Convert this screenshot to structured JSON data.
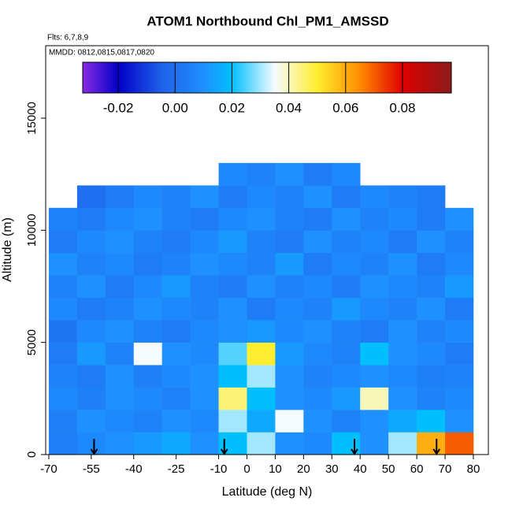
{
  "chart_data": {
    "type": "heatmap",
    "title": "ATOM1 Northbound Chl_PM1_AMSSD",
    "subtitle": "Flts: 6,7,8,9",
    "annotation": "MMDD: 0812,0815,0817,0820",
    "x_label": "Latitude (deg N)",
    "y_label": "Altitude (m)",
    "xlim": [
      -71.1,
      85.3
    ],
    "ylim": [
      0,
      18230
    ],
    "xticks": [
      -70,
      -55,
      -40,
      -25,
      -10,
      0,
      10,
      20,
      30,
      40,
      50,
      60,
      70,
      80
    ],
    "yticks": [
      0,
      5000,
      10000,
      15000
    ],
    "x_bins": [
      -70,
      -60,
      -50,
      -40,
      -30,
      -20,
      -10,
      0,
      10,
      20,
      30,
      40,
      50,
      60,
      70,
      80
    ],
    "y_bins": [
      0,
      1000,
      2000,
      3000,
      4000,
      5000,
      6000,
      7000,
      8000,
      9000,
      10000,
      11000,
      12000,
      13000
    ],
    "values": [
      [
        0.005,
        0.008,
        0.01,
        0.012,
        0.015,
        0.01,
        0.02,
        0.03,
        0.01,
        0.008,
        0.02,
        0.01,
        0.03,
        0.06,
        0.07
      ],
      [
        0.005,
        0.01,
        0.008,
        0.006,
        0.01,
        0.008,
        0.03,
        0.015,
        0.035,
        0.01,
        0.006,
        0.01,
        0.015,
        0.02,
        0.01
      ],
      [
        0.008,
        0.005,
        0.01,
        0.008,
        0.006,
        0.01,
        0.045,
        0.02,
        0.01,
        0.008,
        0.012,
        0.04,
        0.01,
        0.006,
        0.008
      ],
      [
        0.006,
        0.004,
        0.01,
        0.005,
        0.008,
        0.01,
        0.02,
        0.03,
        0.01,
        0.006,
        0.008,
        0.01,
        0.008,
        0.005,
        0.006
      ],
      [
        0.004,
        0.012,
        0.006,
        0.035,
        0.01,
        0.008,
        0.025,
        0.05,
        0.012,
        0.008,
        0.006,
        0.02,
        0.01,
        0.008,
        0.004
      ],
      [
        0.002,
        0.008,
        0.01,
        0.006,
        0.004,
        0.008,
        0.01,
        0.012,
        0.008,
        0.01,
        0.006,
        0.004,
        0.01,
        0.006,
        0.008
      ],
      [
        0.008,
        0.004,
        0.006,
        0.01,
        0.008,
        0.006,
        0.01,
        0.004,
        0.008,
        0.006,
        0.012,
        0.008,
        0.006,
        0.01,
        0.004
      ],
      [
        0.006,
        0.01,
        0.004,
        0.008,
        0.012,
        0.006,
        0.004,
        0.01,
        0.006,
        0.008,
        0.004,
        0.01,
        0.008,
        0.006,
        0.012
      ],
      [
        0.01,
        0.006,
        0.008,
        0.004,
        0.006,
        0.01,
        0.008,
        0.006,
        0.012,
        0.004,
        0.008,
        0.006,
        0.01,
        0.004,
        0.008
      ],
      [
        0.004,
        0.008,
        0.01,
        0.006,
        0.004,
        0.008,
        0.012,
        0.006,
        0.004,
        0.01,
        0.006,
        0.008,
        0.004,
        0.01,
        0.006
      ],
      [
        0.006,
        0.004,
        0.008,
        0.01,
        0.006,
        0.004,
        0.008,
        0.01,
        0.006,
        0.004,
        0.01,
        0.006,
        0.008,
        0.004,
        0.01
      ],
      [
        null,
        0.0,
        0.004,
        0.008,
        0.006,
        0.01,
        0.004,
        0.008,
        0.006,
        0.01,
        0.004,
        0.008,
        0.006,
        0.004,
        null
      ],
      [
        null,
        null,
        null,
        null,
        null,
        null,
        0.008,
        0.006,
        0.01,
        0.004,
        0.008,
        null,
        null,
        null,
        null
      ]
    ],
    "flight_markers": [
      -54,
      -8,
      38,
      67
    ],
    "colorbar_lim": [
      -0.0325,
      0.0972
    ],
    "colorbar_ticks": [
      {
        "value": -0.02,
        "label": "-0.02"
      },
      {
        "value": 0,
        "label": "0.00"
      },
      {
        "value": 0.02,
        "label": "0.02"
      },
      {
        "value": 0.04,
        "label": "0.04"
      },
      {
        "value": 0.06,
        "label": "0.06"
      },
      {
        "value": 0.08,
        "label": "0.08"
      }
    ],
    "colorscale": [
      [
        -0.0325,
        "#8a2be2"
      ],
      [
        -0.02,
        "#0000c8"
      ],
      [
        -0.005,
        "#1f5fe8"
      ],
      [
        0.01,
        "#1e90ff"
      ],
      [
        0.02,
        "#00bfff"
      ],
      [
        0.035,
        "#f5fbff"
      ],
      [
        0.05,
        "#ffee30"
      ],
      [
        0.065,
        "#ff8c00"
      ],
      [
        0.08,
        "#e00000"
      ],
      [
        0.0972,
        "#8b1a1a"
      ]
    ]
  }
}
